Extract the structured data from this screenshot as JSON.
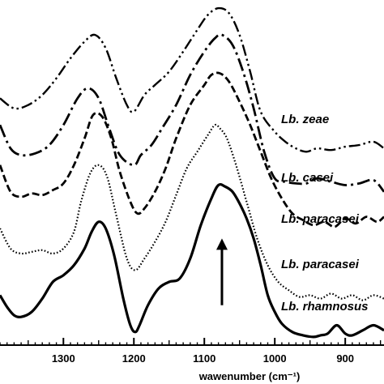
{
  "chart_data": {
    "type": "line",
    "title": "",
    "xlabel": "wawenumber (cm⁻¹)",
    "ylabel": "",
    "xlim": [
      1390,
      845
    ],
    "x_reversed": true,
    "ylim": [
      0,
      100
    ],
    "grid": false,
    "legend": "labels beside curves",
    "x_ticks": [
      "1300",
      "1200",
      "1100",
      "1000",
      "900"
    ],
    "x_tick_values": [
      1300,
      1200,
      1100,
      1000,
      900
    ],
    "annotations": [
      {
        "type": "arrow",
        "direction": "up",
        "x": 1075,
        "y_from": 10,
        "y_to": 30
      }
    ],
    "series": [
      {
        "name": "Lb. zeae",
        "style": "dash-dot-dot",
        "x": [
          1390,
          1370,
          1350,
          1330,
          1310,
          1290,
          1270,
          1255,
          1240,
          1225,
          1210,
          1200,
          1185,
          1170,
          1150,
          1130,
          1110,
          1095,
          1080,
          1065,
          1050,
          1035,
          1020,
          1000,
          985,
          970,
          955,
          940,
          920,
          900,
          880,
          860,
          845
        ],
        "y": [
          72.0,
          69.0,
          70.0,
          73.0,
          78.0,
          84.0,
          89.0,
          91.0,
          87.0,
          78.0,
          70.0,
          68.0,
          73.0,
          76.0,
          80.0,
          86.0,
          92.5,
          97.0,
          99.0,
          97.5,
          91.0,
          80.0,
          68.0,
          62.0,
          59.0,
          57.0,
          56.0,
          57.0,
          56.5,
          57.5,
          58.0,
          59.0,
          57.0
        ]
      },
      {
        "name": "Lb. casei",
        "style": "long-dash-dot",
        "x": [
          1390,
          1375,
          1360,
          1340,
          1320,
          1300,
          1280,
          1265,
          1250,
          1235,
          1220,
          1200,
          1190,
          1175,
          1160,
          1140,
          1120,
          1100,
          1085,
          1075,
          1060,
          1045,
          1030,
          1015,
          1000,
          985,
          970,
          955,
          940,
          920,
          900,
          880,
          860,
          845
        ],
        "y": [
          64.0,
          57.0,
          55.0,
          55.5,
          58.0,
          64.0,
          72.0,
          75.0,
          72.0,
          63.0,
          55.0,
          52.0,
          55.0,
          58.0,
          63.0,
          70.0,
          79.0,
          86.0,
          90.0,
          91.0,
          88.0,
          80.0,
          69.0,
          56.0,
          48.0,
          47.0,
          46.5,
          46.5,
          48.0,
          47.0,
          46.0,
          46.5,
          47.5,
          44.0
        ]
      },
      {
        "name": "Lb. paracasei",
        "style": "dashed",
        "x": [
          1390,
          1375,
          1360,
          1345,
          1330,
          1315,
          1300,
          1285,
          1270,
          1258,
          1245,
          1232,
          1220,
          1205,
          1195,
          1185,
          1170,
          1155,
          1140,
          1120,
          1100,
          1090,
          1078,
          1065,
          1050,
          1035,
          1020,
          1005,
          990,
          975,
          960,
          945,
          930,
          915,
          900,
          885,
          870,
          855,
          845
        ],
        "y": [
          52.0,
          44.0,
          42.5,
          43.5,
          43.0,
          44.5,
          46.5,
          52.0,
          60.0,
          67.0,
          66.5,
          60.0,
          50.0,
          41.0,
          37.5,
          39.0,
          44.0,
          51.0,
          60.0,
          70.0,
          76.0,
          79.0,
          79.5,
          77.0,
          71.0,
          64.0,
          56.0,
          48.0,
          42.0,
          37.5,
          35.5,
          34.0,
          35.0,
          33.5,
          36.0,
          34.5,
          36.5,
          35.0,
          36.5
        ]
      },
      {
        "name": "Lb. paracasei",
        "style": "dotted",
        "x": [
          1390,
          1375,
          1360,
          1345,
          1330,
          1315,
          1300,
          1285,
          1275,
          1262,
          1250,
          1238,
          1225,
          1210,
          1198,
          1185,
          1170,
          1155,
          1140,
          1125,
          1110,
          1095,
          1085,
          1078,
          1068,
          1055,
          1040,
          1025,
          1010,
          995,
          980,
          965,
          950,
          935,
          920,
          905,
          890,
          875,
          860,
          845
        ],
        "y": [
          33.0,
          27.0,
          25.5,
          26.0,
          26.5,
          25.5,
          27.0,
          32.0,
          41.0,
          49.5,
          52.0,
          48.5,
          37.0,
          24.0,
          20.5,
          24.0,
          29.0,
          35.0,
          43.0,
          51.0,
          56.0,
          61.0,
          64.0,
          63.0,
          60.0,
          52.0,
          41.0,
          30.0,
          22.0,
          17.0,
          14.5,
          12.5,
          13.0,
          12.0,
          13.5,
          12.0,
          13.0,
          11.5,
          13.0,
          12.0
        ]
      },
      {
        "name": "Lb. rhamnosus",
        "style": "solid",
        "x": [
          1390,
          1380,
          1370,
          1360,
          1345,
          1330,
          1315,
          1300,
          1285,
          1270,
          1260,
          1250,
          1240,
          1228,
          1215,
          1205,
          1198,
          1192,
          1180,
          1165,
          1150,
          1135,
          1120,
          1105,
          1090,
          1080,
          1070,
          1060,
          1050,
          1040,
          1030,
          1020,
          1010,
          1000,
          990,
          975,
          960,
          945,
          935,
          925,
          912,
          900,
          890,
          875,
          860,
          845
        ],
        "y": [
          13.0,
          9.5,
          7.0,
          6.5,
          8.0,
          12.0,
          17.0,
          19.0,
          22.0,
          27.0,
          32.0,
          35.0,
          33.0,
          25.0,
          12.0,
          4.0,
          2.0,
          4.0,
          10.0,
          15.0,
          17.0,
          18.0,
          24.0,
          34.0,
          42.0,
          46.0,
          45.5,
          44.0,
          40.5,
          36.0,
          30.0,
          22.0,
          13.0,
          8.0,
          4.5,
          2.0,
          1.0,
          0.5,
          1.0,
          1.5,
          4.0,
          1.5,
          1.0,
          2.5,
          4.0,
          2.5
        ]
      }
    ]
  }
}
